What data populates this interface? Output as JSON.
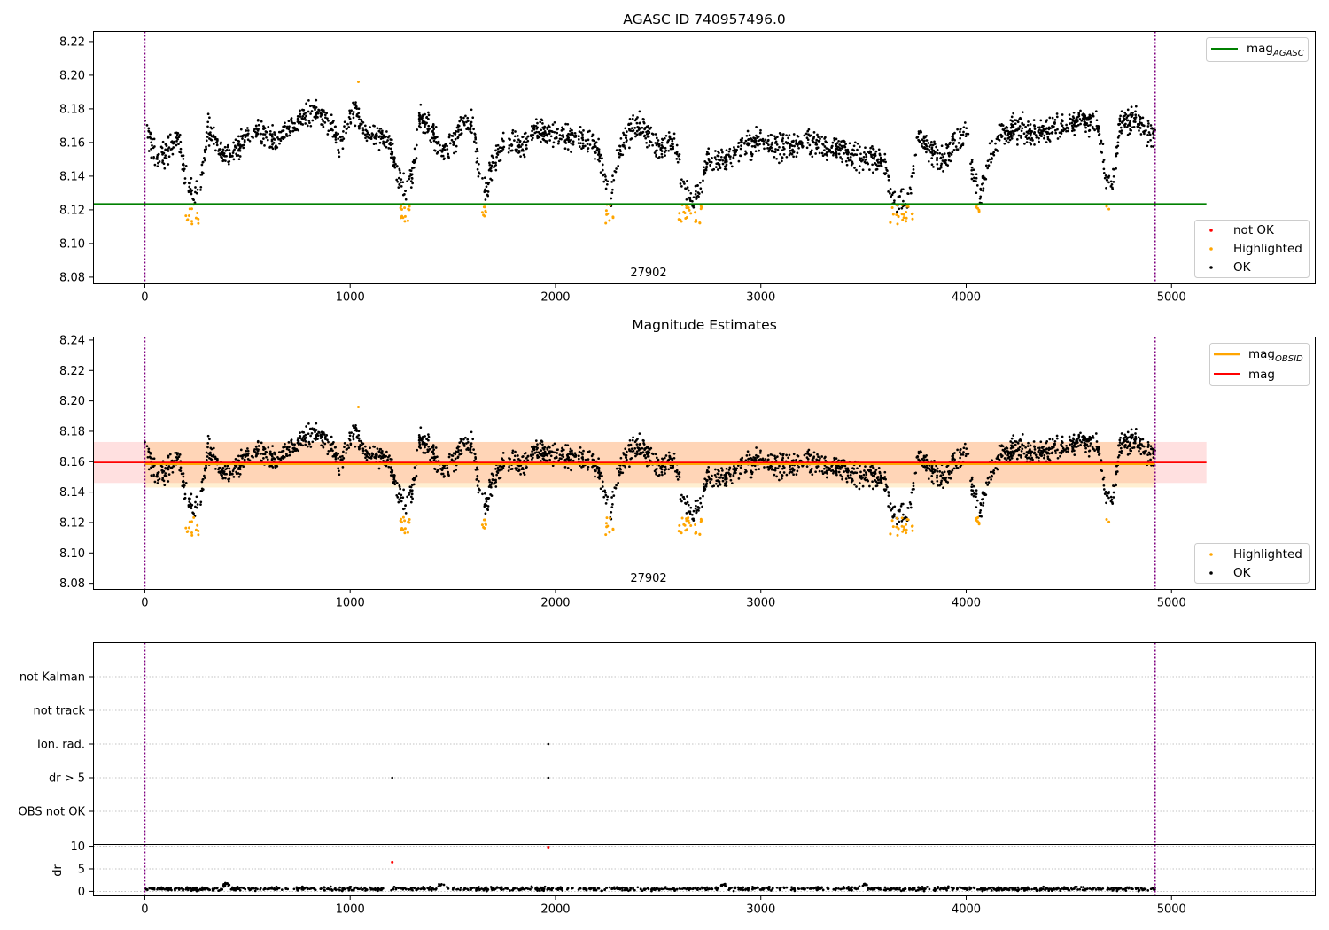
{
  "chart_data": [
    {
      "type": "scatter",
      "title": "AGASC ID 740957496.0",
      "xlim": [
        -250,
        5700
      ],
      "ylim": [
        8.076,
        8.226
      ],
      "xticks": [
        0,
        1000,
        2000,
        3000,
        4000,
        5000
      ],
      "xtick_labels": [
        "0",
        "1000",
        "2000",
        "3000",
        "4000",
        "5000"
      ],
      "yticks": [
        8.08,
        8.1,
        8.12,
        8.14,
        8.16,
        8.18,
        8.2,
        8.22
      ],
      "ytick_labels": [
        "8.08",
        "8.10",
        "8.12",
        "8.14",
        "8.16",
        "8.18",
        "8.20",
        "8.22"
      ],
      "observation_label": "27902",
      "observation_bounds": [
        0,
        4920
      ],
      "series": [
        {
          "name": "not OK",
          "color": "#ff0000",
          "points": []
        },
        {
          "name": "Highlighted",
          "color": "#ffa500",
          "note_points": "dips below mag_AGASC"
        },
        {
          "name": "OK",
          "color": "#000000"
        }
      ],
      "lines": [
        {
          "name": "mag_AGASC",
          "color": "#008000",
          "y": 8.1235,
          "x": [
            -250,
            5170
          ]
        }
      ],
      "legend_upper": [
        {
          "label": "mag",
          "sub": "AGASC",
          "color": "#008000"
        }
      ],
      "legend_lower": [
        {
          "label": "not OK",
          "color": "#ff0000"
        },
        {
          "label": "Highlighted",
          "color": "#ffa500"
        },
        {
          "label": "OK",
          "color": "#000000"
        }
      ],
      "grid": false
    },
    {
      "type": "scatter",
      "title": "Magnitude Estimates",
      "xlim": [
        -250,
        5700
      ],
      "ylim": [
        8.076,
        8.242
      ],
      "xticks": [
        0,
        1000,
        2000,
        3000,
        4000,
        5000
      ],
      "xtick_labels": [
        "0",
        "1000",
        "2000",
        "3000",
        "4000",
        "5000"
      ],
      "yticks": [
        8.08,
        8.1,
        8.12,
        8.14,
        8.16,
        8.18,
        8.2,
        8.22,
        8.24
      ],
      "ytick_labels": [
        "8.08",
        "8.10",
        "8.12",
        "8.14",
        "8.16",
        "8.18",
        "8.20",
        "8.22",
        "8.24"
      ],
      "observation_label": "27902",
      "lines": [
        {
          "name": "mag_OBSID",
          "color": "#ffa500",
          "y": 8.1585,
          "x": [
            0,
            4920
          ],
          "band": [
            8.143,
            8.173
          ]
        },
        {
          "name": "mag",
          "color": "#ff0000",
          "y": 8.1595,
          "x": [
            -250,
            5170
          ],
          "band": [
            8.146,
            8.173
          ]
        }
      ],
      "legend_upper": [
        {
          "label": "mag",
          "sub": "OBSID",
          "color": "#ffa500"
        },
        {
          "label": "mag",
          "sub": "",
          "color": "#ff0000"
        }
      ],
      "legend_lower": [
        {
          "label": "Highlighted",
          "color": "#ffa500"
        },
        {
          "label": "OK",
          "color": "#000000"
        }
      ],
      "grid": false
    },
    {
      "type": "scatter",
      "title": "",
      "categories": [
        "OBS not OK",
        "dr > 5",
        "Ion. rad.",
        "not track",
        "not Kalman"
      ],
      "flag_points": [
        {
          "category": "dr > 5",
          "x": [
            1205,
            1965
          ]
        },
        {
          "category": "Ion. rad.",
          "x": [
            1965
          ]
        }
      ],
      "grid": true
    },
    {
      "type": "scatter",
      "title": "",
      "ylabel": "dr",
      "xlim": [
        -250,
        5700
      ],
      "ylim": [
        -1,
        10.4
      ],
      "xticks": [
        0,
        1000,
        2000,
        3000,
        4000,
        5000
      ],
      "xtick_labels": [
        "0",
        "1000",
        "2000",
        "3000",
        "4000",
        "5000"
      ],
      "yticks": [
        0,
        5,
        10
      ],
      "ytick_labels": [
        "0",
        "5",
        "10"
      ],
      "outliers": [
        {
          "x": 1205,
          "y": 6.5
        },
        {
          "x": 1965,
          "y": 9.8
        }
      ],
      "grid": true
    }
  ]
}
